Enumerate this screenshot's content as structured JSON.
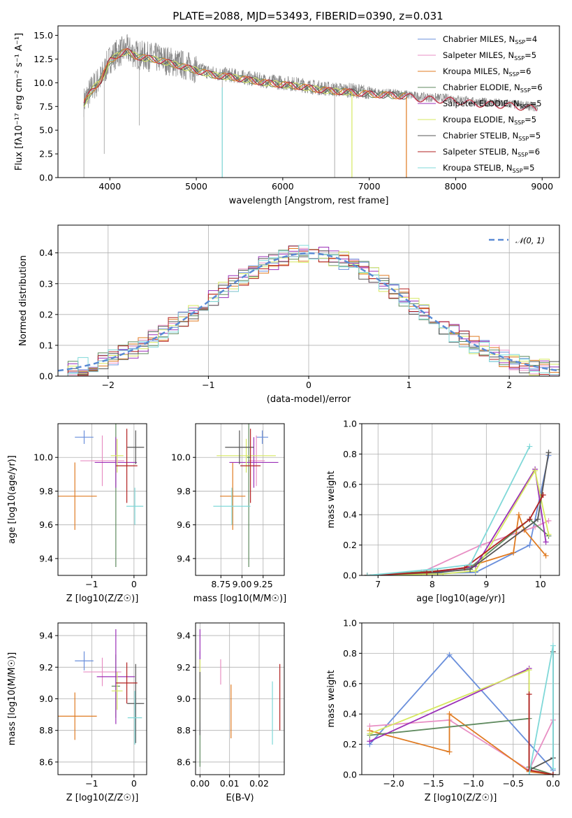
{
  "title": "PLATE=2088, MJD=53493, FIBERID=0390, z=0.031",
  "series_names": [
    "Chabrier MILES",
    "Salpeter MILES",
    "Kroupa MILES",
    "Chabrier ELODIE",
    "Salpeter ELODIE",
    "Kroupa ELODIE",
    "Chabrier STELIB",
    "Salpeter STELIB",
    "Kroupa STELIB"
  ],
  "series_nssp": [
    "4",
    "5",
    "6",
    "6",
    "5",
    "5",
    "5",
    "6",
    "5"
  ],
  "colors": [
    "#6a8fdb",
    "#e88fc4",
    "#e07b22",
    "#5f8a5f",
    "#9b30b8",
    "#d6e860",
    "#555555",
    "#b22222",
    "#7fd8d8"
  ],
  "chart_data": [
    {
      "type": "line",
      "title": "PLATE=2088, MJD=53493, FIBERID=0390, z=0.031",
      "xlabel": "wavelength [Angstrom, rest frame]",
      "ylabel": "Flux [fλ10⁻¹⁷ erg cm⁻² s⁻¹ A⁻¹]",
      "xlim": [
        3400,
        9200
      ],
      "ylim": [
        0,
        16
      ],
      "xticks": [
        4000,
        5000,
        6000,
        7000,
        8000,
        9000
      ],
      "yticks": [
        0.0,
        2.5,
        5.0,
        7.5,
        10.0,
        12.5,
        15.0
      ],
      "legend_loc": "upper right",
      "continuum": {
        "x": [
          3700,
          3800,
          3900,
          4000,
          4100,
          4200,
          4300,
          4400,
          4500,
          4600,
          4800,
          5000,
          5200,
          5400,
          5600,
          5800,
          6000,
          6200,
          6400,
          6600,
          6800,
          7000,
          7200,
          7400,
          7600,
          7800,
          8000,
          8200,
          8400,
          8600,
          8800,
          8950
        ],
        "y": [
          8.0,
          9.5,
          10.5,
          12.5,
          13.2,
          13.5,
          13.0,
          12.8,
          12.7,
          12.5,
          12.0,
          11.5,
          11.0,
          10.8,
          10.5,
          10.2,
          10.0,
          9.8,
          9.5,
          9.3,
          9.2,
          9.0,
          8.9,
          8.8,
          8.5,
          8.4,
          8.3,
          8.0,
          7.9,
          7.8,
          7.6,
          7.4
        ]
      }
    },
    {
      "type": "bar",
      "xlabel": "(data-model)/error",
      "ylabel": "Normed distribution",
      "xlim": [
        -2.5,
        2.5
      ],
      "ylim": [
        0,
        0.49
      ],
      "xticks": [
        -2,
        -1,
        0,
        1,
        2
      ],
      "yticks": [
        0.0,
        0.1,
        0.2,
        0.3,
        0.4
      ],
      "reference_label": "𝒩(0, 1)",
      "legend_loc": "upper right"
    },
    {
      "type": "scatter",
      "xlabel": "Z [log10(Z/Z☉)]",
      "ylabel": "age  [log10(age/yr)]",
      "xlim": [
        -1.8,
        0.3
      ],
      "ylim": [
        9.3,
        10.2
      ],
      "xticks": [
        -1,
        0
      ],
      "yticks": [
        9.4,
        9.6,
        9.8,
        10.0
      ],
      "points": [
        {
          "x": -1.18,
          "y": 10.12,
          "xerr": 0.22,
          "yerr": 0.04
        },
        {
          "x": -0.75,
          "y": 9.98,
          "xerr": 0.52,
          "yerr": 0.15
        },
        {
          "x": -1.4,
          "y": 9.77,
          "xerr": 0.52,
          "yerr": 0.2
        },
        {
          "x": -0.43,
          "y": 10.0,
          "xerr": 0.0,
          "yerr": 0.65
        },
        {
          "x": -0.43,
          "y": 9.97,
          "xerr": 0.5,
          "yerr": 0.15
        },
        {
          "x": -0.4,
          "y": 10.01,
          "xerr": 0.15,
          "yerr": 0.1
        },
        {
          "x": 0.04,
          "y": 10.06,
          "xerr": 0.2,
          "yerr": 0.1
        },
        {
          "x": -0.17,
          "y": 9.95,
          "xerr": 0.25,
          "yerr": 0.22
        },
        {
          "x": 0.02,
          "y": 9.71,
          "xerr": 0.2,
          "yerr": 0.11
        }
      ]
    },
    {
      "type": "scatter",
      "xlabel": "mass [log10(M/M☉)]",
      "ylabel": "",
      "xlim": [
        8.45,
        9.5
      ],
      "ylim": [
        9.3,
        10.2
      ],
      "xticks": [
        8.75,
        9.0,
        9.25
      ],
      "yticks": [
        9.4,
        9.6,
        9.8,
        10.0
      ],
      "points": [
        {
          "x": 9.24,
          "y": 10.12,
          "xerr": 0.07,
          "yerr": 0.04
        },
        {
          "x": 9.17,
          "y": 9.98,
          "xerr": 0.1,
          "yerr": 0.15
        },
        {
          "x": 8.89,
          "y": 9.77,
          "xerr": 0.15,
          "yerr": 0.2
        },
        {
          "x": 9.08,
          "y": 10.0,
          "xerr": 0.02,
          "yerr": 0.65
        },
        {
          "x": 9.14,
          "y": 9.97,
          "xerr": 0.29,
          "yerr": 0.15
        },
        {
          "x": 9.05,
          "y": 10.01,
          "xerr": 0.35,
          "yerr": 0.1
        },
        {
          "x": 8.97,
          "y": 10.06,
          "xerr": 0.17,
          "yerr": 0.1
        },
        {
          "x": 9.1,
          "y": 9.95,
          "xerr": 0.12,
          "yerr": 0.22
        },
        {
          "x": 8.88,
          "y": 9.71,
          "xerr": 0.22,
          "yerr": 0.11
        }
      ]
    },
    {
      "type": "line",
      "xlabel": "age  [log10(age/yr)]",
      "ylabel": "mass weight",
      "xlim": [
        6.7,
        10.35
      ],
      "ylim": [
        0,
        1
      ],
      "xticks": [
        7,
        8,
        9,
        10
      ],
      "yticks": [
        0.0,
        0.2,
        0.4,
        0.6,
        0.8,
        1.0
      ],
      "series": [
        {
          "x": [
            6.8,
            8.8,
            9.8,
            10.15
          ],
          "y": [
            0.0,
            0.02,
            0.2,
            0.79
          ]
        },
        {
          "x": [
            6.8,
            7.8,
            8.9,
            9.9,
            10.15
          ],
          "y": [
            0.0,
            0.02,
            0.2,
            0.32,
            0.36
          ]
        },
        {
          "x": [
            6.8,
            7.8,
            8.6,
            9.5,
            9.6,
            9.7,
            10.1
          ],
          "y": [
            0.0,
            0.01,
            0.05,
            0.15,
            0.4,
            0.3,
            0.13
          ]
        },
        {
          "x": [
            6.8,
            8.1,
            8.7,
            9.8,
            10.15
          ],
          "y": [
            0.0,
            0.03,
            0.05,
            0.37,
            0.26
          ]
        },
        {
          "x": [
            6.8,
            8.0,
            8.8,
            9.9,
            10.1
          ],
          "y": [
            0.0,
            0.02,
            0.06,
            0.7,
            0.22
          ]
        },
        {
          "x": [
            6.8,
            8.2,
            8.8,
            9.9,
            10.15
          ],
          "y": [
            0.0,
            0.01,
            0.03,
            0.69,
            0.27
          ]
        },
        {
          "x": [
            6.8,
            8.1,
            8.7,
            9.95,
            10.15
          ],
          "y": [
            0.0,
            0.02,
            0.04,
            0.37,
            0.81
          ]
        },
        {
          "x": [
            6.8,
            7.9,
            8.6,
            9.8,
            10.05
          ],
          "y": [
            0.0,
            0.02,
            0.05,
            0.37,
            0.53
          ]
        },
        {
          "x": [
            6.8,
            8.0,
            8.7,
            9.8
          ],
          "y": [
            0.0,
            0.04,
            0.07,
            0.85
          ]
        }
      ]
    },
    {
      "type": "scatter",
      "xlabel": "Z [log10(Z/Z☉)]",
      "ylabel": "mass [log10(M/M☉)]",
      "xlim": [
        -1.8,
        0.3
      ],
      "ylim": [
        8.52,
        9.48
      ],
      "xticks": [
        -1,
        0
      ],
      "yticks": [
        8.6,
        8.8,
        9.0,
        9.2,
        9.4
      ],
      "points": [
        {
          "x": -1.18,
          "y": 9.24,
          "xerr": 0.22,
          "yerr": 0.06
        },
        {
          "x": -0.75,
          "y": 9.17,
          "xerr": 0.45,
          "yerr": 0.09
        },
        {
          "x": -1.4,
          "y": 8.89,
          "xerr": 0.52,
          "yerr": 0.15
        },
        {
          "x": -0.43,
          "y": 9.08,
          "xerr": 0.1,
          "yerr": 0.2
        },
        {
          "x": -0.43,
          "y": 9.14,
          "xerr": 0.45,
          "yerr": 0.3
        },
        {
          "x": -0.4,
          "y": 9.05,
          "xerr": 0.13,
          "yerr": 0.12
        },
        {
          "x": 0.04,
          "y": 8.97,
          "xerr": 0.2,
          "yerr": 0.25
        },
        {
          "x": -0.17,
          "y": 9.1,
          "xerr": 0.25,
          "yerr": 0.13
        },
        {
          "x": 0.02,
          "y": 8.88,
          "xerr": 0.17,
          "yerr": 0.17
        }
      ]
    },
    {
      "type": "scatter",
      "xlabel": "E(B-V)",
      "ylabel": "",
      "xlim": [
        -0.0015,
        0.0285
      ],
      "ylim": [
        8.52,
        9.48
      ],
      "xticks": [
        0.0,
        0.01,
        0.02
      ],
      "yticks": [
        8.6,
        8.8,
        9.0,
        9.2,
        9.4
      ],
      "points": [
        {
          "x": 0.0,
          "y": 9.24,
          "yerr": 0.06
        },
        {
          "x": 0.007,
          "y": 9.17,
          "yerr": 0.08
        },
        {
          "x": 0.0105,
          "y": 8.92,
          "yerr": 0.17
        },
        {
          "x": 0.0,
          "y": 8.75,
          "yerr": 0.18
        },
        {
          "x": 0.0,
          "y": 9.28,
          "yerr": 0.16
        },
        {
          "x": 0.0,
          "y": 9.05,
          "yerr": 0.2
        },
        {
          "x": 0.0,
          "y": 8.97,
          "yerr": 0.2
        },
        {
          "x": 0.027,
          "y": 9.01,
          "yerr": 0.21
        },
        {
          "x": 0.0245,
          "y": 8.91,
          "yerr": 0.2
        }
      ]
    },
    {
      "type": "line",
      "xlabel": "Z [log10(Z/Z☉)]",
      "ylabel": "mass weight",
      "xlim": [
        -2.4,
        0.08
      ],
      "ylim": [
        0,
        1
      ],
      "xticks": [
        -2.0,
        -1.5,
        -1.0,
        -0.5,
        0.0
      ],
      "yticks": [
        0.0,
        0.2,
        0.4,
        0.6,
        0.8,
        1.0
      ],
      "series": [
        {
          "x": [
            -2.3,
            -1.3,
            0.0,
            0.0
          ],
          "y": [
            0.2,
            0.79,
            0.03,
            0.0
          ]
        },
        {
          "x": [
            -2.3,
            -1.3,
            -0.3,
            0.0
          ],
          "y": [
            0.32,
            0.36,
            0.03,
            0.36
          ]
        },
        {
          "x": [
            -2.3,
            -1.3,
            -1.3,
            -0.3,
            0.0
          ],
          "y": [
            0.29,
            0.15,
            0.4,
            0.02,
            0.0
          ]
        },
        {
          "x": [
            -2.3,
            -0.3,
            -0.3,
            0.0
          ],
          "y": [
            0.26,
            0.37,
            0.05,
            0.0
          ]
        },
        {
          "x": [
            -2.3,
            -0.3,
            -0.3,
            0.0
          ],
          "y": [
            0.22,
            0.7,
            0.03,
            0.0
          ]
        },
        {
          "x": [
            -2.3,
            -0.3,
            -0.3,
            0.0
          ],
          "y": [
            0.27,
            0.69,
            0.03,
            0.0
          ]
        },
        {
          "x": [
            -0.3,
            0.0,
            0.0
          ],
          "y": [
            0.03,
            0.11,
            0.81
          ]
        },
        {
          "x": [
            -0.3,
            -0.3,
            0.0
          ],
          "y": [
            0.53,
            0.03,
            0.0
          ]
        },
        {
          "x": [
            -0.3,
            0.0,
            0.0
          ],
          "y": [
            0.0,
            0.85,
            0.04
          ]
        }
      ]
    }
  ]
}
